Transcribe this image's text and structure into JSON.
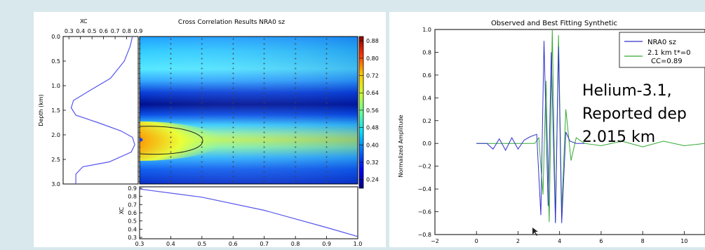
{
  "background": "#d8e8ec",
  "left_panel": {
    "title": "Cross Correlation Results NRA0 sz",
    "profile": {
      "xlabel": "XC",
      "xticks": [
        "0.3",
        "0.4",
        "0.5",
        "0.6",
        "0.7",
        "0.8",
        "0.9"
      ],
      "ylabel": "Depth (km)",
      "yticks": [
        "0.0",
        "0.5",
        "1.0",
        "1.5",
        "2.0",
        "2.5",
        "3.0"
      ]
    },
    "colorbar": {
      "ticks": [
        "0.88",
        "0.80",
        "0.72",
        "0.64",
        "0.56",
        "0.48",
        "0.40",
        "0.32",
        "0.24"
      ]
    },
    "bottom": {
      "ylabel": "XC",
      "yticks": [
        "0.9",
        "0.8",
        "0.7",
        "0.6",
        "0.5",
        "0.4",
        "0.3"
      ],
      "xticks": [
        "0.3",
        "0.4",
        "0.5",
        "0.6",
        "0.7",
        "0.8",
        "0.9",
        "1.0"
      ]
    }
  },
  "right_panel": {
    "title": "Observed and Best Fitting Synthetic",
    "ylabel": "Normalized Amplitude",
    "yticks": [
      "1.0",
      "0.8",
      "0.6",
      "0.4",
      "0.2",
      "0.0",
      "−0.2",
      "−0.4",
      "−0.6",
      "−0.8"
    ],
    "xticks": [
      "−2",
      "0",
      "2",
      "4",
      "6",
      "8",
      "10"
    ],
    "legend": [
      {
        "label": "NRA0 sz",
        "color": "#3333cc"
      },
      {
        "label": "2.1 km t*=0",
        "label2": "CC=0.89",
        "color": "#33aa33"
      }
    ],
    "overlay": [
      "Helium-3.1,",
      "Reported dep",
      "2.015 km"
    ]
  },
  "chart_data": [
    {
      "type": "line",
      "title": "",
      "xlabel": "XC",
      "ylabel": "Depth (km)",
      "xlim": [
        0.25,
        0.9
      ],
      "ylim": [
        3.0,
        0.0
      ],
      "series": [
        {
          "name": "",
          "x": [
            0.85,
            0.83,
            0.78,
            0.66,
            0.48,
            0.34,
            0.32,
            0.36,
            0.55,
            0.75,
            0.85,
            0.87,
            0.84,
            0.65,
            0.42,
            0.36,
            0.36
          ],
          "y": [
            0.0,
            0.2,
            0.5,
            0.85,
            1.1,
            1.3,
            1.45,
            1.6,
            1.75,
            1.92,
            2.05,
            2.2,
            2.35,
            2.55,
            2.65,
            2.8,
            3.0
          ]
        }
      ]
    },
    {
      "type": "heatmap",
      "title": "Cross Correlation Results NRA0 sz",
      "x_range": [
        0.3,
        1.0
      ],
      "y_range": [
        0.0,
        3.0
      ],
      "colorbar_range": [
        0.2,
        0.9
      ],
      "peak": {
        "x": 0.3,
        "y": 2.1,
        "value": 0.89
      }
    },
    {
      "type": "line",
      "title": "",
      "xlabel": "",
      "ylabel": "XC",
      "xlim": [
        0.3,
        1.0
      ],
      "ylim": [
        0.3,
        0.9
      ],
      "series": [
        {
          "name": "",
          "x": [
            0.3,
            0.5,
            0.7,
            0.9,
            1.0
          ],
          "y": [
            0.89,
            0.79,
            0.63,
            0.42,
            0.31
          ]
        }
      ]
    },
    {
      "type": "line",
      "title": "Observed and Best Fitting Synthetic",
      "xlabel": "",
      "ylabel": "Normalized Amplitude",
      "xlim": [
        -2,
        11
      ],
      "ylim": [
        -0.8,
        1.0
      ],
      "series": [
        {
          "name": "NRA0 sz",
          "x": [
            0.0,
            0.5,
            0.8,
            1.1,
            1.4,
            1.7,
            2.0,
            2.3,
            2.6,
            2.9,
            3.1,
            3.25,
            3.45,
            3.6,
            3.8,
            3.95,
            4.1,
            4.3,
            4.5,
            4.8,
            5.2
          ],
          "y": [
            0.0,
            0.0,
            -0.05,
            0.04,
            -0.06,
            0.05,
            -0.05,
            0.03,
            0.06,
            0.08,
            -0.63,
            0.9,
            -0.55,
            0.8,
            -0.7,
            0.85,
            -0.7,
            0.1,
            0.02,
            0.0,
            0.0
          ]
        },
        {
          "name": "2.1 km t*=0",
          "x": [
            0.0,
            2.8,
            3.0,
            3.2,
            3.35,
            3.5,
            3.65,
            3.8,
            3.95,
            4.1,
            4.3,
            4.55,
            4.8,
            5.2,
            6.0,
            7.0,
            8.0,
            9.0,
            10.0,
            11.0
          ],
          "y": [
            0.0,
            0.0,
            0.05,
            -0.45,
            0.55,
            -0.69,
            1.0,
            -0.69,
            0.95,
            -0.6,
            0.3,
            -0.15,
            0.05,
            0.0,
            -0.02,
            0.02,
            -0.03,
            0.02,
            -0.02,
            0.0
          ]
        }
      ]
    }
  ]
}
